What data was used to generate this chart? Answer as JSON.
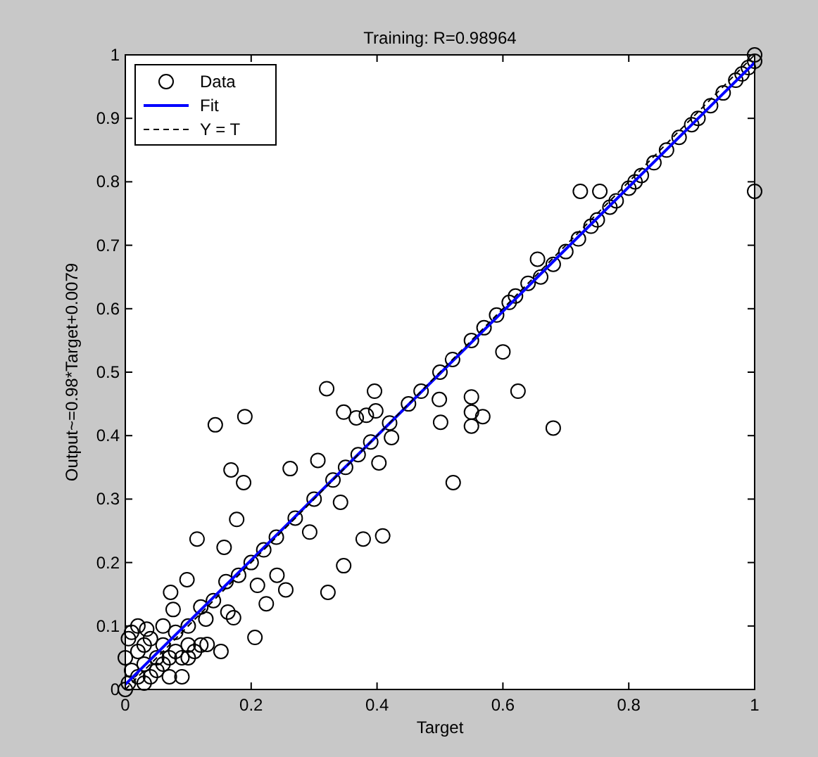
{
  "chart_data": {
    "type": "scatter",
    "title": "Training: R=0.98964",
    "xlabel": "Target",
    "ylabel": "Output~=0.98*Target+0.0079",
    "xlim": [
      0,
      1
    ],
    "ylim": [
      0,
      1
    ],
    "xticks": [
      0,
      0.2,
      0.4,
      0.6,
      0.8,
      1
    ],
    "yticks": [
      0,
      0.1,
      0.2,
      0.3,
      0.4,
      0.5,
      0.6,
      0.7,
      0.8,
      0.9,
      1
    ],
    "grid": false,
    "legend": "top left",
    "series": [
      {
        "name": "Data",
        "marker": "circle",
        "color": "#000000",
        "x": [
          0.32,
          0.396,
          0.398,
          0.347,
          0.367,
          0.383,
          0.19,
          0.143,
          0.423,
          0.403,
          0.499,
          0.501,
          0.521,
          0.306,
          0.262,
          0.168,
          0.188,
          0.342,
          0.177,
          0.293,
          0.378,
          0.409,
          0.114,
          0.157,
          0.347,
          0.322,
          0.241,
          0.255,
          0.21,
          0.224,
          0.206,
          0.072,
          0.098,
          0.152,
          0.13,
          0.172,
          0.163,
          0.034,
          0.076,
          0.128,
          0.723,
          0.754,
          1.0,
          0.655,
          0.6,
          0.624,
          0.55,
          0.55,
          0.568,
          0.55,
          0.68,
          0.02,
          0.03,
          0.05,
          0.06,
          0.08,
          0.1,
          0.12,
          0.14,
          0.16,
          0.18,
          0.2,
          0.22,
          0.24,
          0.27,
          0.3,
          0.33,
          0.35,
          0.37,
          0.39,
          0.42,
          0.45,
          0.47,
          0.5,
          0.52,
          0.55,
          0.57,
          0.59,
          0.61,
          0.62,
          0.64,
          0.66,
          0.68,
          0.7,
          0.72,
          0.74,
          0.75,
          0.77,
          0.78,
          0.8,
          0.81,
          0.82,
          0.84,
          0.86,
          0.88,
          0.9,
          0.91,
          0.93,
          0.95,
          0.97,
          0.98,
          0.99,
          1,
          1,
          0,
          0.005,
          0.01,
          0.005,
          0.01,
          0.02,
          0.03,
          0.04,
          0.05,
          0.06,
          0.07,
          0.08,
          0.09,
          0.1,
          0.11,
          0.04,
          0.06,
          0.03,
          0.02,
          0.1,
          0.12,
          0.07,
          0.09,
          0
        ],
        "values": [
          0.474,
          0.47,
          0.439,
          0.437,
          0.428,
          0.432,
          0.43,
          0.417,
          0.397,
          0.357,
          0.457,
          0.421,
          0.326,
          0.361,
          0.348,
          0.346,
          0.326,
          0.295,
          0.268,
          0.248,
          0.237,
          0.242,
          0.237,
          0.224,
          0.195,
          0.153,
          0.18,
          0.157,
          0.164,
          0.135,
          0.082,
          0.153,
          0.173,
          0.06,
          0.071,
          0.113,
          0.122,
          0.095,
          0.126,
          0.111,
          0.785,
          0.785,
          0.785,
          0.678,
          0.532,
          0.47,
          0.461,
          0.437,
          0.43,
          0.415,
          0.412,
          0.02,
          0.01,
          0.05,
          0.07,
          0.09,
          0.1,
          0.13,
          0.14,
          0.17,
          0.18,
          0.2,
          0.22,
          0.24,
          0.27,
          0.3,
          0.33,
          0.35,
          0.37,
          0.39,
          0.42,
          0.45,
          0.47,
          0.5,
          0.52,
          0.55,
          0.57,
          0.59,
          0.61,
          0.62,
          0.64,
          0.65,
          0.67,
          0.69,
          0.71,
          0.73,
          0.74,
          0.76,
          0.77,
          0.79,
          0.8,
          0.81,
          0.83,
          0.85,
          0.87,
          0.89,
          0.9,
          0.92,
          0.94,
          0.96,
          0.97,
          0.98,
          0.99,
          1,
          0,
          0.01,
          0.03,
          0.08,
          0.09,
          0.06,
          0.04,
          0.02,
          0.03,
          0.04,
          0.05,
          0.06,
          0.05,
          0.07,
          0.06,
          0.08,
          0.1,
          0.07,
          0.1,
          0.05,
          0.07,
          0.02,
          0.02,
          0.05
        ]
      },
      {
        "name": "Fit",
        "type": "line",
        "marker": "none",
        "line_style": "solid",
        "color": "#0000ff",
        "x": [
          0,
          1
        ],
        "values": [
          0.0079,
          0.9879
        ]
      },
      {
        "name": "Y = T",
        "type": "line",
        "marker": "none",
        "line_style": "dashed",
        "color": "#000000",
        "x": [
          0,
          1
        ],
        "values": [
          0,
          1
        ]
      }
    ]
  }
}
